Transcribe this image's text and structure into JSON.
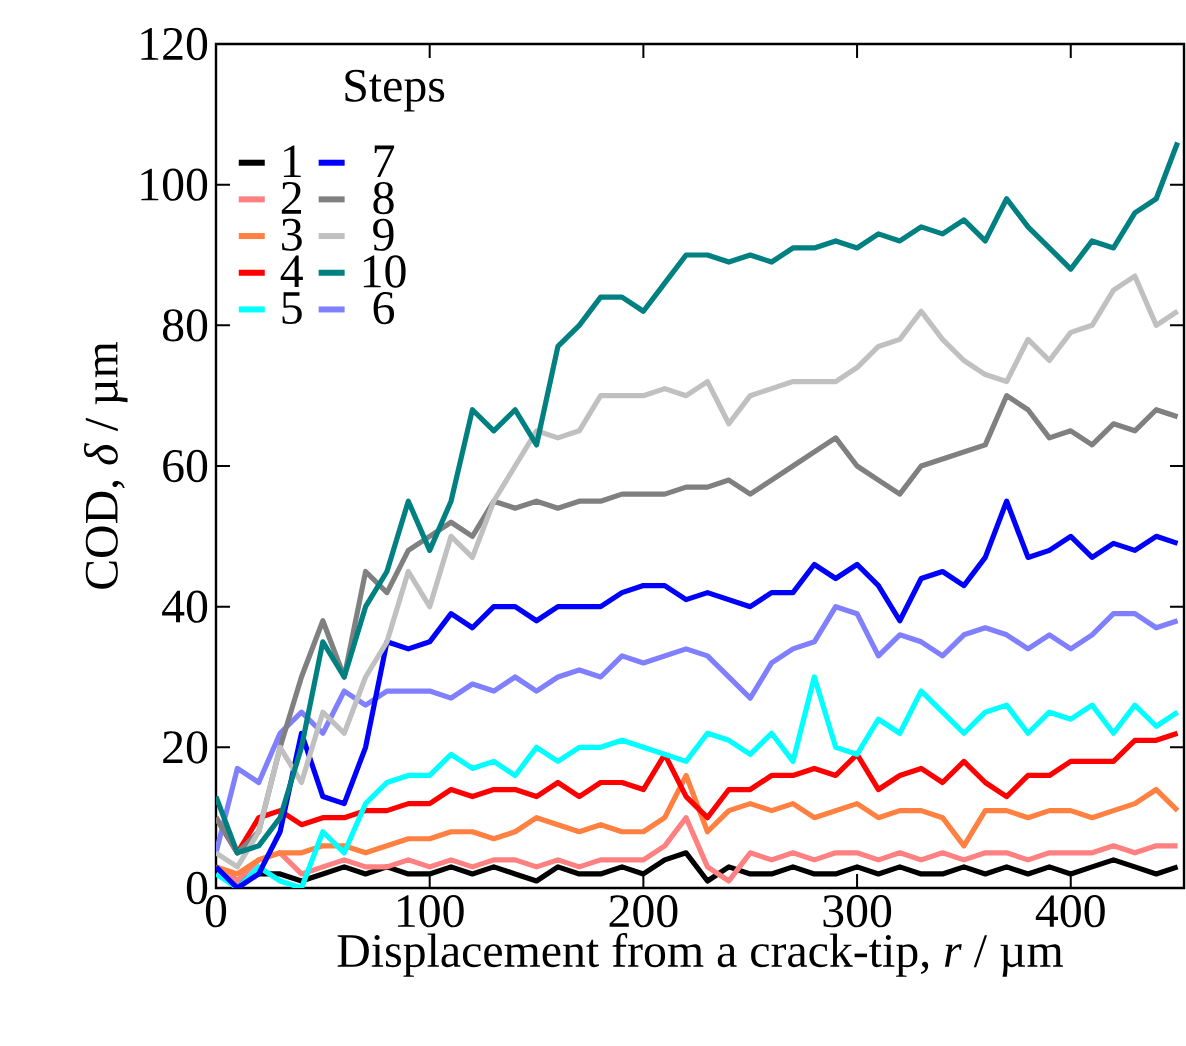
{
  "chart_data": {
    "type": "line",
    "xlabel": "Displacement from a crack-tip, *r* / µm",
    "ylabel": "COD, *δ* / µm",
    "legend_title": "Steps",
    "legend": "top left",
    "xlim": [
      0,
      453
    ],
    "ylim": [
      0,
      120
    ],
    "xticks": [
      0,
      100,
      200,
      300,
      400
    ],
    "yticks": [
      0,
      20,
      40,
      60,
      80,
      100,
      120
    ],
    "grid": false,
    "x": [
      0,
      10,
      20,
      30,
      40,
      50,
      60,
      70,
      80,
      90,
      100,
      110,
      120,
      130,
      140,
      150,
      160,
      170,
      180,
      190,
      200,
      210,
      220,
      230,
      240,
      250,
      260,
      270,
      280,
      290,
      300,
      310,
      320,
      330,
      340,
      350,
      360,
      370,
      380,
      390,
      400,
      410,
      420,
      430,
      440,
      450
    ],
    "series": [
      {
        "name": "1",
        "color": "#000000",
        "values": [
          3,
          1,
          2,
          2,
          1,
          2,
          3,
          2,
          3,
          2,
          2,
          3,
          2,
          3,
          2,
          1,
          3,
          2,
          2,
          3,
          2,
          4,
          5,
          1,
          3,
          2,
          2,
          3,
          2,
          2,
          3,
          2,
          3,
          2,
          2,
          3,
          2,
          3,
          2,
          3,
          2,
          3,
          4,
          3,
          2,
          3
        ]
      },
      {
        "name": "2",
        "color": "#ff8080",
        "values": [
          3,
          1,
          4,
          5,
          2,
          3,
          4,
          3,
          3,
          4,
          3,
          4,
          3,
          4,
          4,
          3,
          4,
          3,
          4,
          4,
          4,
          6,
          10,
          3,
          1,
          5,
          4,
          5,
          4,
          5,
          5,
          4,
          5,
          4,
          5,
          4,
          5,
          5,
          4,
          5,
          5,
          5,
          6,
          5,
          6,
          6
        ]
      },
      {
        "name": "3",
        "color": "#ff8040",
        "values": [
          3,
          2,
          4,
          5,
          5,
          6,
          6,
          5,
          6,
          7,
          7,
          8,
          8,
          7,
          8,
          10,
          9,
          8,
          9,
          8,
          8,
          10,
          16,
          8,
          11,
          12,
          11,
          12,
          10,
          11,
          12,
          10,
          11,
          11,
          10,
          6,
          11,
          11,
          10,
          11,
          11,
          10,
          11,
          12,
          14,
          11
        ]
      },
      {
        "name": "4",
        "color": "#ff0000",
        "values": [
          10,
          5,
          10,
          11,
          9,
          10,
          10,
          11,
          11,
          12,
          12,
          14,
          13,
          14,
          14,
          13,
          15,
          13,
          15,
          15,
          14,
          19,
          13,
          10,
          14,
          14,
          16,
          16,
          17,
          16,
          19,
          14,
          16,
          17,
          15,
          18,
          15,
          13,
          16,
          16,
          18,
          18,
          18,
          21,
          21,
          22
        ]
      },
      {
        "name": "5",
        "color": "#00ffff",
        "values": [
          2,
          0,
          3,
          1,
          0,
          8,
          5,
          12,
          15,
          16,
          16,
          19,
          17,
          18,
          16,
          20,
          18,
          20,
          20,
          21,
          20,
          19,
          18,
          22,
          21,
          19,
          22,
          18,
          30,
          20,
          19,
          24,
          22,
          28,
          25,
          22,
          25,
          26,
          22,
          25,
          24,
          26,
          22,
          26,
          23,
          25
        ]
      },
      {
        "name": "6",
        "color": "#8080ff",
        "values": [
          5,
          17,
          15,
          22,
          25,
          22,
          28,
          26,
          28,
          28,
          28,
          27,
          29,
          28,
          30,
          28,
          30,
          31,
          30,
          33,
          32,
          33,
          34,
          33,
          30,
          27,
          32,
          34,
          35,
          40,
          39,
          33,
          36,
          35,
          33,
          36,
          37,
          36,
          34,
          36,
          34,
          36,
          39,
          39,
          37,
          38
        ]
      },
      {
        "name": "7",
        "color": "#0000ff",
        "values": [
          3,
          0,
          2,
          8,
          22,
          13,
          12,
          20,
          35,
          34,
          35,
          39,
          37,
          40,
          40,
          38,
          40,
          40,
          40,
          42,
          43,
          43,
          41,
          42,
          41,
          40,
          42,
          42,
          46,
          44,
          46,
          43,
          38,
          44,
          45,
          43,
          47,
          55,
          47,
          48,
          50,
          47,
          49,
          48,
          50,
          49
        ]
      },
      {
        "name": "8",
        "color": "#808080",
        "values": [
          10,
          5,
          8,
          20,
          30,
          38,
          30,
          45,
          42,
          48,
          50,
          52,
          50,
          55,
          54,
          55,
          54,
          55,
          55,
          56,
          56,
          56,
          57,
          57,
          58,
          56,
          58,
          60,
          62,
          64,
          60,
          58,
          56,
          60,
          61,
          62,
          63,
          70,
          68,
          64,
          65,
          63,
          66,
          65,
          68,
          67
        ]
      },
      {
        "name": "9",
        "color": "#c0c0c0",
        "values": [
          5,
          3,
          8,
          20,
          15,
          25,
          22,
          30,
          35,
          45,
          40,
          50,
          47,
          55,
          60,
          65,
          64,
          65,
          70,
          70,
          70,
          71,
          70,
          72,
          66,
          70,
          71,
          72,
          72,
          72,
          74,
          77,
          78,
          82,
          78,
          75,
          73,
          72,
          78,
          75,
          79,
          80,
          85,
          87,
          80,
          82
        ]
      },
      {
        "name": "10",
        "color": "#008080",
        "values": [
          13,
          5,
          6,
          10,
          20,
          35,
          30,
          40,
          45,
          55,
          48,
          55,
          68,
          65,
          68,
          63,
          77,
          80,
          84,
          84,
          82,
          86,
          90,
          90,
          89,
          90,
          89,
          91,
          91,
          92,
          91,
          93,
          92,
          94,
          93,
          95,
          92,
          98,
          94,
          91,
          88,
          92,
          91,
          96,
          98,
          106
        ]
      }
    ]
  }
}
